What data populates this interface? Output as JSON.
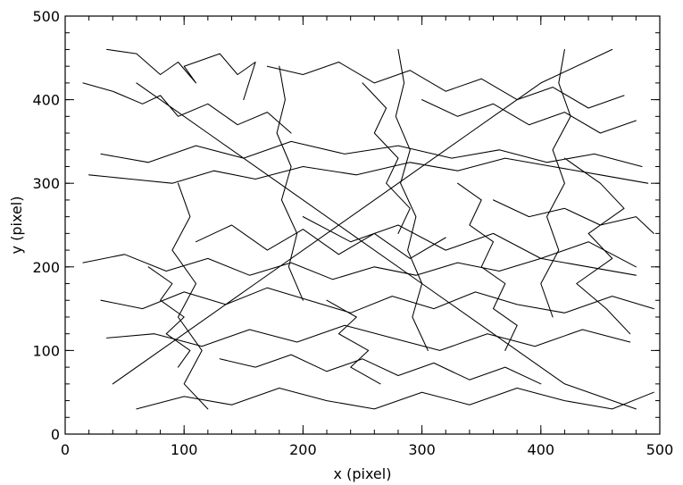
{
  "chart_data": {
    "type": "line",
    "title": "",
    "xlabel": "x (pixel)",
    "ylabel": "y (pixel)",
    "xlim": [
      0,
      500
    ],
    "ylim": [
      0,
      500
    ],
    "xticks": [
      0,
      100,
      200,
      300,
      400,
      500
    ],
    "yticks": [
      0,
      100,
      200,
      300,
      400,
      500
    ],
    "x_minor_step": 20,
    "y_minor_step": 20,
    "grid": false,
    "legend": "none",
    "line_color": "#000000",
    "series": [
      {
        "x": [
          35,
          60,
          80,
          95,
          110,
          100,
          130,
          145,
          160,
          150
        ],
        "y": [
          460,
          455,
          430,
          445,
          420,
          440,
          455,
          430,
          445,
          400
        ]
      },
      {
        "x": [
          15,
          40,
          65,
          80,
          95,
          120,
          145,
          170,
          190
        ],
        "y": [
          420,
          410,
          395,
          405,
          380,
          395,
          370,
          385,
          360
        ]
      },
      {
        "x": [
          20,
          55,
          90,
          125,
          160,
          200,
          245,
          290,
          330,
          370,
          410,
          450,
          490
        ],
        "y": [
          310,
          305,
          300,
          315,
          305,
          320,
          310,
          325,
          315,
          330,
          320,
          310,
          300
        ]
      },
      {
        "x": [
          30,
          70,
          110,
          150,
          190,
          235,
          280,
          325,
          365,
          405,
          445,
          485
        ],
        "y": [
          335,
          325,
          345,
          330,
          350,
          335,
          345,
          330,
          340,
          325,
          335,
          320
        ]
      },
      {
        "x": [
          15,
          50,
          85,
          120,
          155,
          190,
          225,
          260,
          295,
          330,
          365,
          400,
          440,
          480
        ],
        "y": [
          205,
          215,
          195,
          210,
          190,
          205,
          185,
          200,
          190,
          205,
          195,
          210,
          200,
          190
        ]
      },
      {
        "x": [
          30,
          65,
          100,
          135,
          170,
          205,
          240,
          275,
          310,
          345,
          380,
          420,
          460,
          495
        ],
        "y": [
          160,
          150,
          170,
          155,
          175,
          160,
          145,
          165,
          150,
          170,
          155,
          145,
          165,
          150
        ]
      },
      {
        "x": [
          35,
          75,
          115,
          155,
          195,
          235,
          275,
          315,
          355,
          395,
          435,
          475
        ],
        "y": [
          115,
          120,
          105,
          125,
          110,
          130,
          115,
          100,
          120,
          105,
          125,
          110
        ]
      },
      {
        "x": [
          60,
          100,
          140,
          180,
          220,
          260,
          300,
          340,
          380,
          420,
          460,
          495
        ],
        "y": [
          30,
          45,
          35,
          55,
          40,
          30,
          50,
          35,
          55,
          40,
          30,
          50
        ]
      },
      {
        "x": [
          170,
          200,
          230,
          260,
          290,
          320,
          350,
          380,
          410,
          440,
          470
        ],
        "y": [
          440,
          430,
          445,
          420,
          435,
          410,
          425,
          400,
          415,
          390,
          405
        ]
      },
      {
        "x": [
          180,
          185,
          178,
          190,
          182,
          195,
          188,
          200
        ],
        "y": [
          440,
          400,
          360,
          320,
          280,
          240,
          200,
          160
        ]
      },
      {
        "x": [
          280,
          285,
          278,
          290,
          282,
          295,
          288,
          300,
          292,
          305
        ],
        "y": [
          460,
          420,
          380,
          340,
          300,
          260,
          220,
          180,
          140,
          100
        ]
      },
      {
        "x": [
          420,
          415,
          425,
          410,
          420,
          405,
          415,
          400,
          410
        ],
        "y": [
          460,
          420,
          380,
          340,
          300,
          260,
          220,
          180,
          140
        ]
      },
      {
        "x": [
          95,
          105,
          90,
          110,
          95,
          115,
          100,
          120
        ],
        "y": [
          300,
          260,
          220,
          180,
          140,
          100,
          60,
          30
        ]
      },
      {
        "x": [
          60,
          120,
          180,
          240,
          300,
          360,
          420,
          480
        ],
        "y": [
          420,
          360,
          300,
          240,
          180,
          120,
          60,
          30
        ]
      },
      {
        "x": [
          40,
          100,
          160,
          220,
          280,
          340,
          400,
          460
        ],
        "y": [
          60,
          120,
          180,
          240,
          300,
          360,
          420,
          460
        ]
      },
      {
        "x": [
          200,
          240,
          280,
          320,
          360,
          400,
          440,
          480
        ],
        "y": [
          260,
          230,
          250,
          220,
          240,
          210,
          230,
          200
        ]
      },
      {
        "x": [
          110,
          140,
          170,
          200,
          230,
          260,
          290,
          320
        ],
        "y": [
          230,
          250,
          220,
          245,
          215,
          240,
          210,
          235
        ]
      },
      {
        "x": [
          330,
          350,
          340,
          360,
          350,
          370,
          360,
          380,
          370
        ],
        "y": [
          300,
          280,
          250,
          230,
          200,
          180,
          150,
          130,
          100
        ]
      },
      {
        "x": [
          250,
          270,
          260,
          280,
          270,
          290,
          280
        ],
        "y": [
          420,
          390,
          360,
          330,
          300,
          270,
          240
        ]
      },
      {
        "x": [
          420,
          450,
          470,
          440,
          460,
          430,
          455,
          475
        ],
        "y": [
          330,
          300,
          270,
          240,
          210,
          180,
          150,
          120
        ]
      },
      {
        "x": [
          70,
          90,
          80,
          100,
          85,
          105,
          95
        ],
        "y": [
          200,
          180,
          160,
          140,
          120,
          100,
          80
        ]
      },
      {
        "x": [
          130,
          160,
          190,
          220,
          250,
          280,
          310,
          340,
          370,
          400
        ],
        "y": [
          90,
          80,
          95,
          75,
          90,
          70,
          85,
          65,
          80,
          60
        ]
      },
      {
        "x": [
          300,
          330,
          360,
          390,
          420,
          450,
          480
        ],
        "y": [
          400,
          380,
          395,
          370,
          385,
          360,
          375
        ]
      },
      {
        "x": [
          220,
          245,
          230,
          255,
          240,
          265
        ],
        "y": [
          160,
          140,
          120,
          100,
          80,
          60
        ]
      },
      {
        "x": [
          360,
          390,
          420,
          450,
          480,
          495
        ],
        "y": [
          280,
          260,
          270,
          250,
          260,
          240
        ]
      }
    ]
  }
}
